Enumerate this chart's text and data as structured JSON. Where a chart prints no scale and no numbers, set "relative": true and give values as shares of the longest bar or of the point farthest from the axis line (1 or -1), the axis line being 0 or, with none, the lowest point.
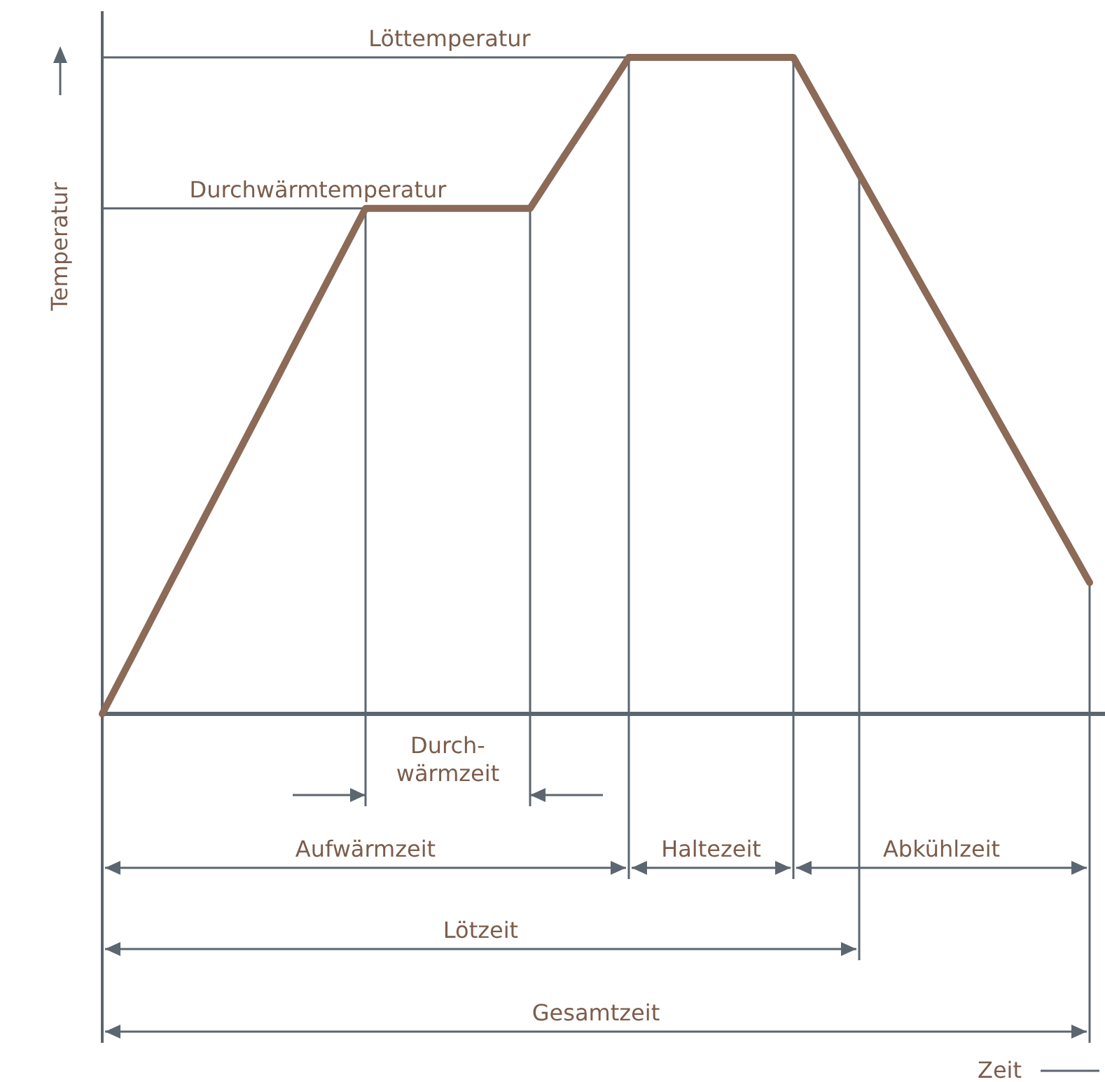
{
  "chart_data": {
    "type": "line",
    "relative": true,
    "ylabel": "Temperatur",
    "grid": "x",
    "categories": [
      null,
      null,
      null,
      null,
      null,
      null,
      null,
      null,
      null,
      null,
      null,
      null,
      null,
      null,
      null,
      null,
      null,
      null,
      null,
      null,
      null,
      null,
      null,
      null,
      null,
      null,
      null,
      null,
      null,
      null,
      null
    ],
    "series": [
      {
        "color": "#8c6a58",
        "values": [
          0,
          0.096,
          0.193,
          0.289,
          0.385,
          0.481,
          0.578,
          0.674,
          0.77,
          0.77,
          0.77,
          0.77,
          0.77,
          0.77,
          0.847,
          0.923,
          1,
          1,
          1,
          1,
          1,
          1,
          0.911,
          0.822,
          0.733,
          0.644,
          0.556,
          0.467,
          0.378,
          0.289,
          0.2
        ]
      }
    ],
    "ref_lines": [
      {
        "axis": "y",
        "value": 1,
        "label": "Löttemperatur"
      },
      {
        "axis": "y",
        "value": 0.77,
        "label": "Durchwärmtemperatur"
      }
    ],
    "annotations": [
      "Durch-\nwärmzeit",
      "Aufwärmzeit",
      "Haltezeit",
      "Abkühlzeit",
      "Lötzeit",
      "Gesamtzeit",
      "Zeit"
    ]
  }
}
